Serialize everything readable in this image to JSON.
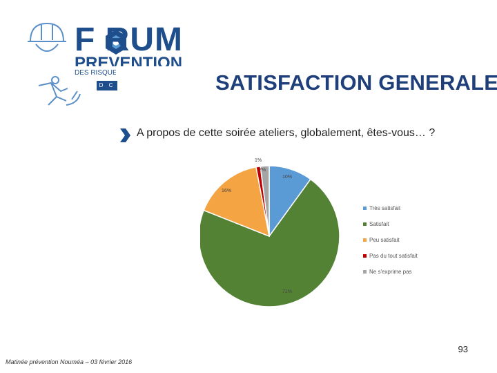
{
  "header": {
    "logo_forum": "F RUM",
    "logo_prevention": "PREVENTION",
    "logo_des_risques": "DES RISQUE",
    "logo_badge": "D C",
    "title": "SATISFACTION GENERALE"
  },
  "question": "A propos de cette soirée ateliers, globalement, êtes-vous… ?",
  "chart_data": {
    "type": "pie",
    "slices": [
      {
        "label": "Très satisfait",
        "value": 10,
        "display": "10%",
        "color": "#5b9bd5"
      },
      {
        "label": "Satisfait",
        "value": 71,
        "display": "71%",
        "color": "#548235"
      },
      {
        "label": "Peu satisfait",
        "value": 16,
        "display": "16%",
        "color": "#f4a442"
      },
      {
        "label": "Pas du tout satisfait",
        "value": 1,
        "display": "1%",
        "color": "#c00000"
      },
      {
        "label": "Ne s'exprime pas",
        "value": 2,
        "display": "2%",
        "color": "#a5a5a5"
      }
    ],
    "legend_position": "right"
  },
  "footer": "Matinée prévention Nouméa – 03 février 2016",
  "page_number": "93",
  "colors": {
    "brand_blue": "#1f4e8c",
    "title_blue": "#1f3f7a"
  }
}
